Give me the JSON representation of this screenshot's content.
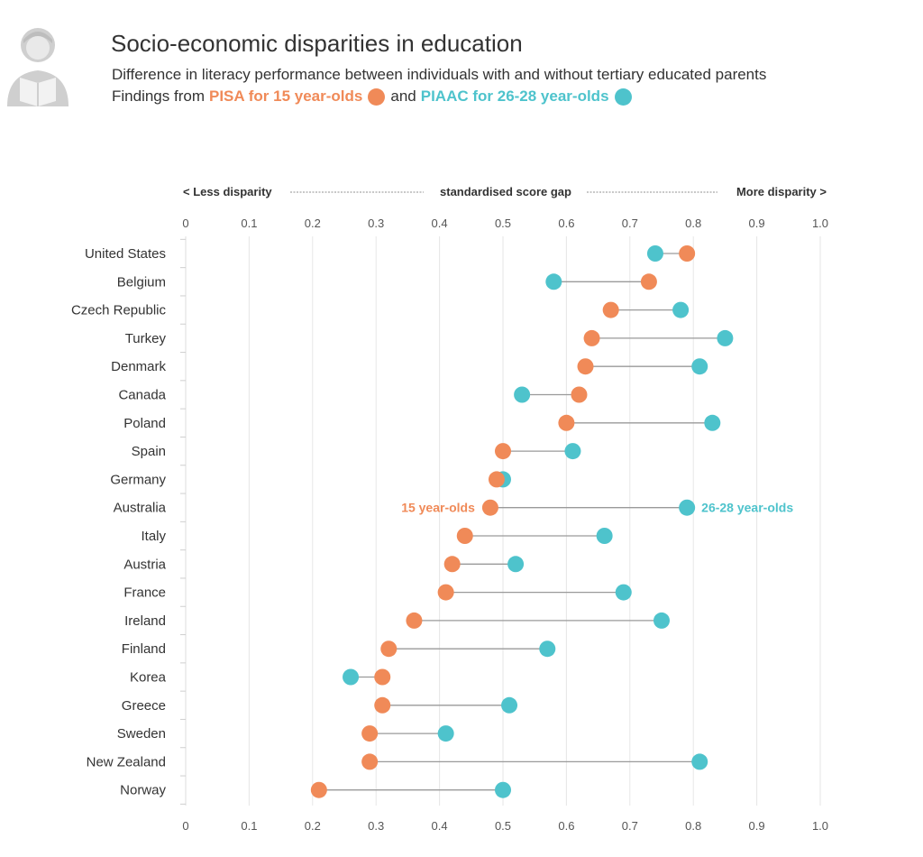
{
  "header": {
    "title": "Socio-economic disparities in education",
    "subtitle": "Difference in literacy performance between individuals with and without tertiary educated parents",
    "findings_prefix": "Findings from",
    "pisa_label": "PISA for 15 year-olds",
    "and_word": "and",
    "piaac_label": "PIAAC for 26-28 year-olds",
    "icon": "person-reading-book-icon"
  },
  "colors": {
    "pisa": "#f08a58",
    "piaac": "#4ec3cc",
    "connector": "#9a9a9a",
    "grid": "#e6e6e6"
  },
  "chart_data": {
    "type": "scatter",
    "subtype": "dumbbell",
    "axis_annotation": {
      "left": "< Less disparity",
      "center": "standardised score gap",
      "right": "More disparity >"
    },
    "xlim": [
      0,
      1.0
    ],
    "xticks": [
      "0",
      "0.1",
      "0.2",
      "0.3",
      "0.4",
      "0.5",
      "0.6",
      "0.7",
      "0.8",
      "0.9",
      "1.0"
    ],
    "grid": true,
    "annotations": {
      "row": "Australia",
      "pisa": "15 year-olds",
      "piaac": "26-28 year-olds"
    },
    "categories": [
      "United States",
      "Belgium",
      "Czech Republic",
      "Turkey",
      "Denmark",
      "Canada",
      "Poland",
      "Spain",
      "Germany",
      "Australia",
      "Italy",
      "Austria",
      "France",
      "Ireland",
      "Finland",
      "Korea",
      "Greece",
      "Sweden",
      "New Zealand",
      "Norway"
    ],
    "series": [
      {
        "name": "PISA for 15 year-olds",
        "values": [
          0.79,
          0.73,
          0.67,
          0.64,
          0.63,
          0.62,
          0.6,
          0.5,
          0.49,
          0.48,
          0.44,
          0.42,
          0.41,
          0.36,
          0.32,
          0.31,
          0.31,
          0.29,
          0.29,
          0.21
        ]
      },
      {
        "name": "PIAAC for 26-28 year-olds",
        "values": [
          0.74,
          0.58,
          0.78,
          0.85,
          0.81,
          0.53,
          0.83,
          0.61,
          0.5,
          0.79,
          0.66,
          0.52,
          0.69,
          0.75,
          0.57,
          0.26,
          0.51,
          0.41,
          0.81,
          0.5
        ]
      }
    ]
  }
}
